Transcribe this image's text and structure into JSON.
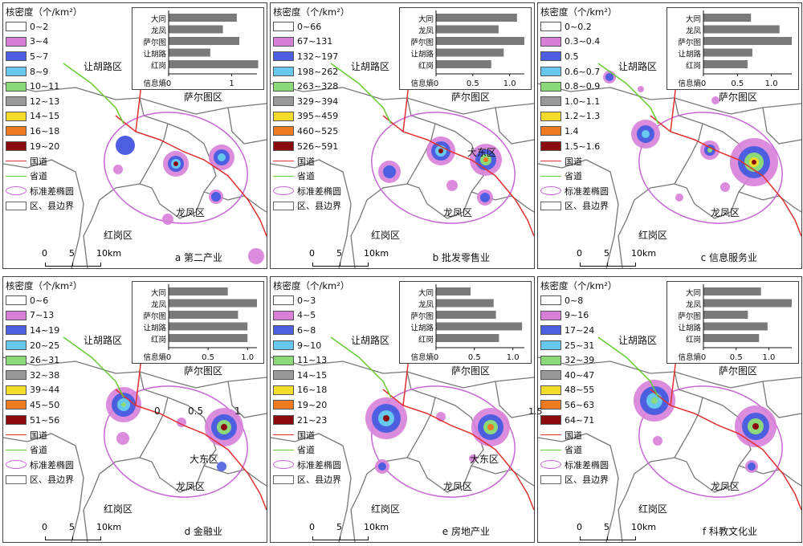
{
  "legend_common": {
    "title": "核密度（个/km²）",
    "guodao": "国道",
    "shengdao": "省道",
    "ellipse": "标准差椭圆",
    "boundary": "区、县边界",
    "guodao_color": "#e03030",
    "shengdao_color": "#66cc33",
    "ellipse_color": "#c767d6"
  },
  "density_colors": [
    "#ffffff",
    "#d77fd8",
    "#4d5fe0",
    "#66c8ec",
    "#8cd97a",
    "#999999",
    "#f4dc2c",
    "#f07a20",
    "#8b0a10"
  ],
  "district_labels": {
    "ranghu": "让胡路区",
    "saertu": "萨尔图区",
    "longfeng": "龙凤区",
    "honggang": "红岗区",
    "datong": "大东区"
  },
  "scale": {
    "zero": "0",
    "five": "5",
    "ten": "10km"
  },
  "inset": {
    "categories": [
      "大同",
      "龙凤",
      "萨尔图",
      "让胡路",
      "红岗"
    ],
    "axis_label": "信息熵"
  },
  "panels": [
    {
      "caption": "a 第二产业",
      "classes": [
        "0~2",
        "3~4",
        "5~7",
        "8~9",
        "10~11",
        "12~13",
        "14~15",
        "16~18",
        "19~20"
      ],
      "entropy": [
        1.08,
        0.86,
        1.12,
        0.66,
        1.42
      ],
      "ticks": [
        "0",
        "1"
      ],
      "xmax": 1.4
    },
    {
      "caption": "b 批发零售业",
      "classes": [
        "0~66",
        "67~131",
        "132~197",
        "198~262",
        "263~328",
        "329~394",
        "395~459",
        "460~525",
        "526~591"
      ],
      "entropy": [
        1.1,
        0.85,
        1.2,
        0.92,
        0.75
      ],
      "ticks": [
        "0",
        "0.5",
        "1.0"
      ],
      "xmax": 1.2
    },
    {
      "caption": "c 信息服务业",
      "classes": [
        "0~0.2",
        "0.3~0.4",
        "0.5",
        "0.6~0.7",
        "0.8~0.9",
        "1.0~1.1",
        "1.2~1.3",
        "1.4",
        "1.5~1.6"
      ],
      "entropy": [
        0.7,
        1.12,
        1.3,
        0.72,
        0.65
      ],
      "ticks": [
        "0",
        "0.5",
        "1.0"
      ],
      "xmax": 1.3
    },
    {
      "caption": "d 金融业",
      "classes": [
        "0~6",
        "7~13",
        "14~19",
        "20~25",
        "26~31",
        "32~38",
        "39~44",
        "45~50",
        "51~56"
      ],
      "entropy": [
        0.75,
        1.12,
        0.88,
        1.0,
        1.0
      ],
      "ticks": [
        "0",
        "0.5",
        "1.0"
      ],
      "xmax": 1.12
    },
    {
      "caption": "e 房地产业",
      "classes": [
        "0~3",
        "4~5",
        "6~8",
        "9~10",
        "11~13",
        "14~15",
        "16~18",
        "19~20",
        "21~23"
      ],
      "entropy": [
        0.45,
        0.75,
        0.78,
        1.12,
        0.82
      ],
      "ticks": [
        "0",
        "0.5",
        "1.0"
      ],
      "xmax": 1.15
    },
    {
      "caption": "f 科教文化业",
      "classes": [
        "0~8",
        "9~16",
        "17~24",
        "25~31",
        "32~39",
        "40~47",
        "48~55",
        "56~63",
        "64~71"
      ],
      "entropy": [
        0.88,
        1.35,
        0.68,
        0.98,
        0.85
      ],
      "ticks": [
        "0",
        "0.5",
        "1.0"
      ],
      "xmax": 1.35
    }
  ],
  "stray_labels": {
    "d0": "0",
    "d05": "0.5",
    "d1": "1",
    "e15": "1.5"
  }
}
